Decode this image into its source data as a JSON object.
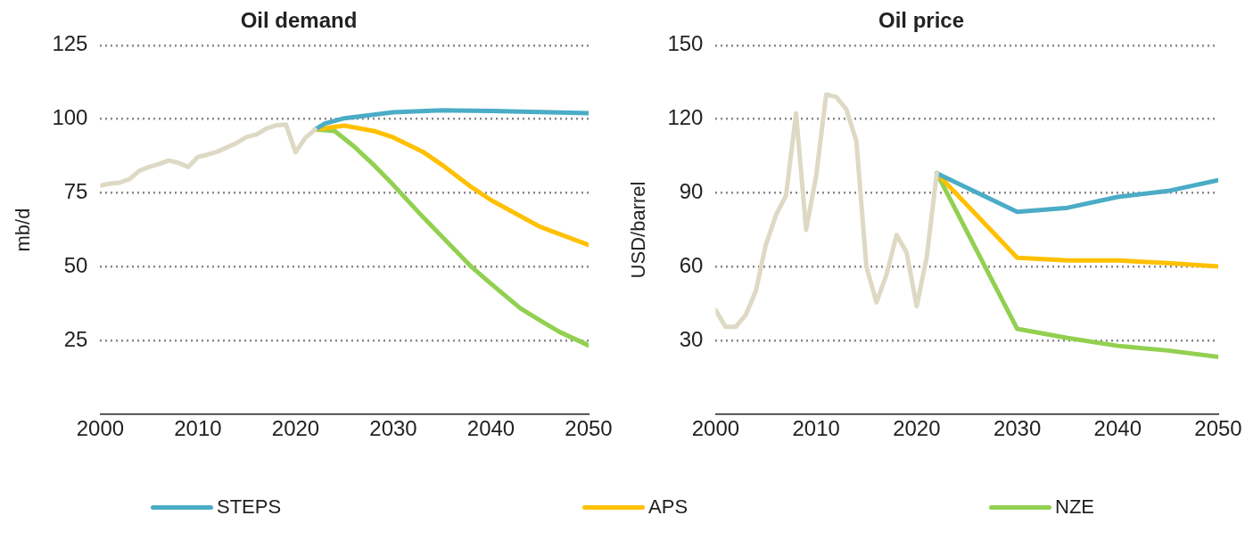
{
  "chart_data": [
    {
      "type": "line",
      "title": "Oil demand",
      "ylabel": "mb/d",
      "xlim": [
        2000,
        2050
      ],
      "xticks": [
        2000,
        2010,
        2020,
        2030,
        2040,
        2050
      ],
      "ylim": [
        0,
        125
      ],
      "yticks": [
        25,
        50,
        75,
        100,
        125
      ],
      "grid": "y",
      "legend": "bottom",
      "marker": "none",
      "line_style": "solid",
      "series": [
        {
          "color": "#ddd9c4",
          "x": [
            2000,
            2001,
            2002,
            2003,
            2004,
            2005,
            2006,
            2007,
            2008,
            2009,
            2010,
            2011,
            2012,
            2013,
            2014,
            2015,
            2016,
            2017,
            2018,
            2019,
            2020,
            2021,
            2022
          ],
          "values": [
            77.5,
            78.2,
            78.5,
            79.7,
            82.5,
            83.8,
            84.8,
            86,
            85.2,
            83.8,
            87.2,
            88,
            89,
            90.5,
            92,
            94,
            94.8,
            96.8,
            97.9,
            98.2,
            88.8,
            93.7,
            96.5
          ]
        },
        {
          "name": "STEPS",
          "color": "#4bacc6",
          "x": [
            2022,
            2023,
            2025,
            2030,
            2035,
            2040,
            2045,
            2050
          ],
          "values": [
            96.5,
            98.5,
            100.3,
            102.3,
            103,
            102.8,
            102.4,
            102
          ]
        },
        {
          "name": "APS",
          "color": "#ffc000",
          "x": [
            2022,
            2025,
            2028,
            2030,
            2033,
            2035,
            2038,
            2040,
            2045,
            2050
          ],
          "values": [
            96.5,
            97.8,
            96,
            93.8,
            89,
            84.5,
            77,
            72.6,
            63.6,
            57.4
          ]
        },
        {
          "name": "NZE",
          "color": "#92d050",
          "x": [
            2022,
            2024,
            2026,
            2028,
            2030,
            2033,
            2035,
            2038,
            2040,
            2043,
            2045,
            2047,
            2050
          ],
          "values": [
            96.5,
            96,
            90.7,
            84.5,
            77.7,
            67,
            60.2,
            50,
            44.3,
            36,
            31.9,
            28,
            23.4
          ]
        }
      ]
    },
    {
      "type": "line",
      "title": "Oil price",
      "ylabel": "USD/barrel",
      "xlim": [
        2000,
        2050
      ],
      "xticks": [
        2000,
        2010,
        2020,
        2030,
        2040,
        2050
      ],
      "ylim": [
        0,
        150
      ],
      "yticks": [
        30,
        60,
        90,
        120,
        150
      ],
      "grid": "y",
      "legend": "bottom",
      "marker": "none",
      "line_style": "solid",
      "series": [
        {
          "color": "#ddd9c4",
          "x": [
            2000,
            2001,
            2002,
            2003,
            2004,
            2005,
            2006,
            2007,
            2008,
            2009,
            2010,
            2011,
            2012,
            2013,
            2014,
            2015,
            2016,
            2017,
            2018,
            2019,
            2020,
            2021,
            2022
          ],
          "values": [
            42.4,
            35.6,
            35.6,
            40.5,
            50.2,
            69,
            81,
            89,
            122.3,
            75,
            97,
            130,
            129,
            124,
            111,
            60,
            45.6,
            56.9,
            73,
            65.8,
            44,
            64,
            98
          ]
        },
        {
          "name": "STEPS",
          "color": "#4bacc6",
          "x": [
            2022,
            2030,
            2035,
            2040,
            2045,
            2050
          ],
          "values": [
            98,
            82.3,
            84,
            88.4,
            90.8,
            95.2
          ]
        },
        {
          "name": "APS",
          "color": "#ffc000",
          "x": [
            2022,
            2030,
            2035,
            2040,
            2045,
            2050
          ],
          "values": [
            98,
            63.7,
            62.6,
            62.6,
            61.5,
            60.2
          ]
        },
        {
          "name": "NZE",
          "color": "#92d050",
          "x": [
            2022,
            2030,
            2035,
            2040,
            2045,
            2050
          ],
          "values": [
            98,
            34.8,
            31.1,
            27.9,
            26,
            23.4
          ]
        }
      ]
    }
  ]
}
